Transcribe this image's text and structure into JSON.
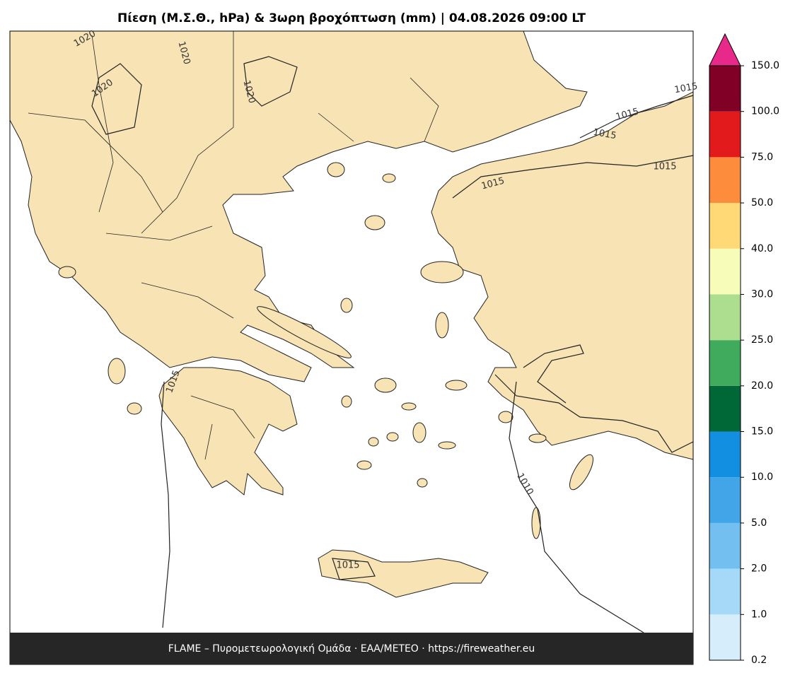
{
  "title": "Πίεση (Μ.Σ.Θ., hPa) & 3ωρη βροχόπτωση (mm)  |  04.08.2026 09:00 LT",
  "footer": "FLAME – Πυρομετεωρολογική Ομάδα · ΕΑΑ/METEO · https://fireweather.eu",
  "isobar_labels": [
    1020,
    1020,
    1020,
    1020,
    1015,
    1015,
    1015,
    1015,
    1015,
    1015,
    1015,
    1010
  ],
  "colorbar": {
    "ticks": [
      {
        "value": 0.2,
        "label": "0.2"
      },
      {
        "value": 1,
        "label": "1.0"
      },
      {
        "value": 2,
        "label": "2.0"
      },
      {
        "value": 5,
        "label": "5.0"
      },
      {
        "value": 10,
        "label": "10.0"
      },
      {
        "value": 15,
        "label": "15.0"
      },
      {
        "value": 20,
        "label": "20.0"
      },
      {
        "value": 25,
        "label": "25.0"
      },
      {
        "value": 30,
        "label": "30.0"
      },
      {
        "value": 40,
        "label": "40.0"
      },
      {
        "value": 50,
        "label": "50.0"
      },
      {
        "value": 75,
        "label": "75.0"
      },
      {
        "value": 100,
        "label": "100.0"
      },
      {
        "value": 150,
        "label": "150.0"
      }
    ],
    "colors": [
      "#d6eefc",
      "#a6d8f7",
      "#73c0f0",
      "#42a5e8",
      "#138fe1",
      "#006837",
      "#41ab5d",
      "#addd8e",
      "#f7fcb9",
      "#fed976",
      "#fd8d3c",
      "#e31a1c",
      "#800026"
    ],
    "extend_color": "#e7298a"
  }
}
